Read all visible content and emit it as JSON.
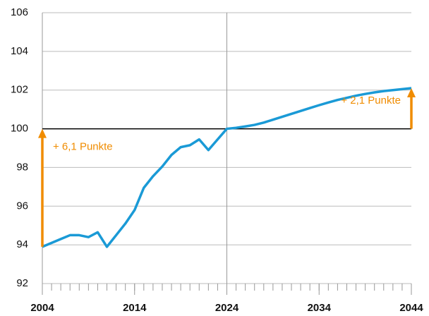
{
  "chart_data": {
    "type": "line",
    "x": [
      2004,
      2005,
      2006,
      2007,
      2008,
      2009,
      2010,
      2011,
      2012,
      2013,
      2014,
      2015,
      2016,
      2017,
      2018,
      2019,
      2020,
      2021,
      2022,
      2023,
      2024,
      2025,
      2026,
      2027,
      2028,
      2029,
      2030,
      2031,
      2032,
      2033,
      2034,
      2035,
      2036,
      2037,
      2038,
      2039,
      2040,
      2041,
      2042,
      2043,
      2044
    ],
    "series": [
      {
        "color": "#1a9ad6",
        "values": [
          93.9,
          94.1,
          94.3,
          94.5,
          94.5,
          94.4,
          94.65,
          93.9,
          94.5,
          95.1,
          95.8,
          96.95,
          97.55,
          98.05,
          98.65,
          99.05,
          99.15,
          99.45,
          98.9,
          99.45,
          100.0,
          100.05,
          100.12,
          100.2,
          100.32,
          100.47,
          100.62,
          100.77,
          100.92,
          101.07,
          101.22,
          101.36,
          101.49,
          101.6,
          101.71,
          101.8,
          101.88,
          101.95,
          102.0,
          102.05,
          102.1
        ]
      }
    ],
    "xlim": [
      2004,
      2044
    ],
    "xticks": [
      2004,
      2014,
      2024,
      2034,
      2044
    ],
    "ylim": [
      92,
      106
    ],
    "yticks": [
      92,
      94,
      96,
      98,
      100,
      102,
      104,
      106
    ],
    "grid": true,
    "reference_line": 100,
    "vline": 2024,
    "annotation_color": "#f08c00",
    "annotations": [
      {
        "text": "+ 6,1 Punkte",
        "x": 2004,
        "from": 93.9,
        "to": 100
      },
      {
        "text": "+ 2,1 Punkte",
        "x": 2044,
        "from": 100,
        "to": 102.1
      }
    ]
  }
}
